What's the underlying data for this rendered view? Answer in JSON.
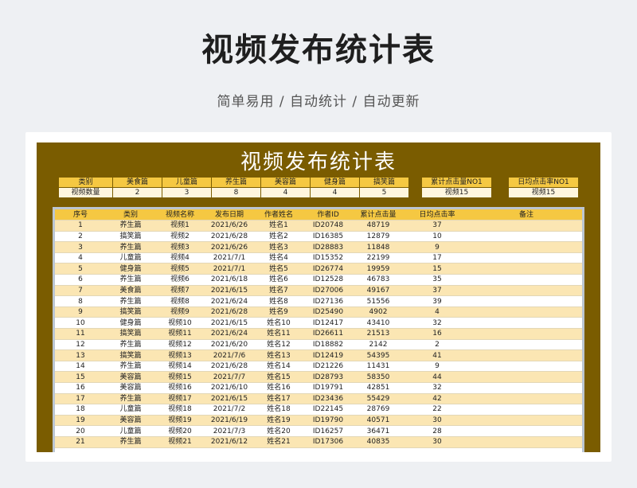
{
  "header": {
    "title": "视频发布统计表",
    "subtitle": "简单易用 / 自动统计 / 自动更新"
  },
  "sheet": {
    "title": "视频发布统计表",
    "summary": {
      "row1_label": "类别",
      "row2_label": "视频数量",
      "categories": [
        "美食篇",
        "儿童篇",
        "养生篇",
        "美容篇",
        "健身篇",
        "搞笑篇"
      ],
      "counts": [
        "2",
        "3",
        "8",
        "4",
        "4",
        "5"
      ]
    },
    "top_clicks": {
      "label": "累计点击量NO1",
      "value": "视频15"
    },
    "top_daily": {
      "label": "日均点击率NO1",
      "value": "视频15"
    },
    "columns": [
      "序号",
      "类别",
      "视频名称",
      "发布日期",
      "作者姓名",
      "作者ID",
      "累计点击量",
      "日均点击率",
      "备注"
    ],
    "rows": [
      [
        "1",
        "养生篇",
        "视频1",
        "2021/6/26",
        "姓名1",
        "ID20748",
        "48719",
        "37",
        ""
      ],
      [
        "2",
        "搞笑篇",
        "视频2",
        "2021/6/28",
        "姓名2",
        "ID16385",
        "12879",
        "10",
        ""
      ],
      [
        "3",
        "养生篇",
        "视频3",
        "2021/6/26",
        "姓名3",
        "ID28883",
        "11848",
        "9",
        ""
      ],
      [
        "4",
        "儿童篇",
        "视频4",
        "2021/7/1",
        "姓名4",
        "ID15352",
        "22199",
        "17",
        ""
      ],
      [
        "5",
        "健身篇",
        "视频5",
        "2021/7/1",
        "姓名5",
        "ID26774",
        "19959",
        "15",
        ""
      ],
      [
        "6",
        "养生篇",
        "视频6",
        "2021/6/18",
        "姓名6",
        "ID12528",
        "46783",
        "35",
        ""
      ],
      [
        "7",
        "美食篇",
        "视频7",
        "2021/6/15",
        "姓名7",
        "ID27006",
        "49167",
        "37",
        ""
      ],
      [
        "8",
        "养生篇",
        "视频8",
        "2021/6/24",
        "姓名8",
        "ID27136",
        "51556",
        "39",
        ""
      ],
      [
        "9",
        "搞笑篇",
        "视频9",
        "2021/6/28",
        "姓名9",
        "ID25490",
        "4902",
        "4",
        ""
      ],
      [
        "10",
        "健身篇",
        "视频10",
        "2021/6/15",
        "姓名10",
        "ID12417",
        "43410",
        "32",
        ""
      ],
      [
        "11",
        "搞笑篇",
        "视频11",
        "2021/6/24",
        "姓名11",
        "ID26611",
        "21513",
        "16",
        ""
      ],
      [
        "12",
        "养生篇",
        "视频12",
        "2021/6/20",
        "姓名12",
        "ID18882",
        "2142",
        "2",
        ""
      ],
      [
        "13",
        "搞笑篇",
        "视频13",
        "2021/7/6",
        "姓名13",
        "ID12419",
        "54395",
        "41",
        ""
      ],
      [
        "14",
        "养生篇",
        "视频14",
        "2021/6/28",
        "姓名14",
        "ID21226",
        "11431",
        "9",
        ""
      ],
      [
        "15",
        "美容篇",
        "视频15",
        "2021/7/7",
        "姓名15",
        "ID28793",
        "58350",
        "44",
        ""
      ],
      [
        "16",
        "美容篇",
        "视频16",
        "2021/6/10",
        "姓名16",
        "ID19791",
        "42851",
        "32",
        ""
      ],
      [
        "17",
        "养生篇",
        "视频17",
        "2021/6/15",
        "姓名17",
        "ID23436",
        "55429",
        "42",
        ""
      ],
      [
        "18",
        "儿童篇",
        "视频18",
        "2021/7/2",
        "姓名18",
        "ID22145",
        "28769",
        "22",
        ""
      ],
      [
        "19",
        "美容篇",
        "视频19",
        "2021/6/19",
        "姓名19",
        "ID19790",
        "40571",
        "30",
        ""
      ],
      [
        "20",
        "儿童篇",
        "视频20",
        "2021/7/3",
        "姓名20",
        "ID16257",
        "36471",
        "28",
        ""
      ],
      [
        "21",
        "养生篇",
        "视频21",
        "2021/6/12",
        "姓名21",
        "ID17306",
        "40835",
        "30",
        ""
      ]
    ]
  }
}
